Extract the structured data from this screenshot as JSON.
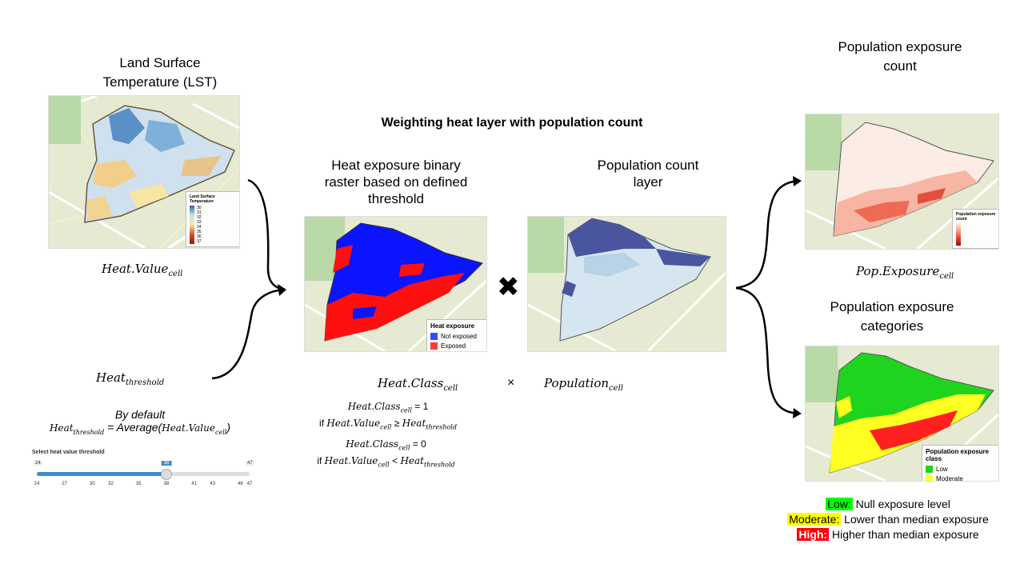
{
  "lst": {
    "title_line1": "Land Surface",
    "title_line2": "Temperature (LST)",
    "legend_title": "Land Surface Temperature",
    "legend_ticks": [
      "30",
      "31",
      "32",
      "33",
      "34",
      "35",
      "36",
      "37"
    ],
    "formula_base": "Heat.Value",
    "formula_sub": "cell"
  },
  "threshold": {
    "formula_base": "Heat",
    "formula_sub": "threshold",
    "default_line": "By default",
    "avg_prefix_base": "Heat",
    "avg_prefix_sub": "threshold",
    "avg_text": " = Average(",
    "avg_arg_base": "Heat.Value",
    "avg_arg_sub": "cell",
    "avg_close": ")"
  },
  "slider": {
    "label": "Select heat value threshold",
    "min": "24",
    "max": "47",
    "value": "38",
    "value_num": 38,
    "min_num": 24,
    "max_num": 47,
    "ticks": [
      "24",
      "27",
      "30",
      "32",
      "35",
      "38",
      "41",
      "43",
      "46",
      "47"
    ]
  },
  "center": {
    "heading": "Weighting heat layer with population count",
    "binary_title_line1": "Heat exposure binary",
    "binary_title_line2": "raster based on defined",
    "binary_title_line3": "threshold",
    "pop_title_line1": "Population count",
    "pop_title_line2": "layer",
    "multiply_symbol": "✖",
    "times_symbol": "×",
    "heat_class_base": "Heat.Class",
    "heat_class_sub": "cell",
    "population_base": "Population",
    "population_sub": "cell",
    "rule1_lhs_base": "Heat.Class",
    "rule1_lhs_sub": "cell",
    "rule1_eq": " = 1",
    "rule1_if": "if ",
    "rule1_val_base": "Heat.Value",
    "rule1_val_sub": "cell",
    "rule1_op": " ≥ ",
    "rule1_thr_base": "Heat",
    "rule1_thr_sub": "threshold",
    "rule2_lhs_base": "Heat.Class",
    "rule2_lhs_sub": "cell",
    "rule2_eq": " = 0",
    "rule2_if": "if ",
    "rule2_val_base": "Heat.Value",
    "rule2_val_sub": "cell",
    "rule2_op": " < ",
    "rule2_thr_base": "Heat",
    "rule2_thr_sub": "threshold"
  },
  "binary_legend": {
    "title": "Heat exposure",
    "items": [
      {
        "label": "Not exposed",
        "color": "#3a4bff"
      },
      {
        "label": "Exposed",
        "color": "#ff3a3a"
      }
    ]
  },
  "right": {
    "count_title_line1": "Population exposure",
    "count_title_line2": "count",
    "count_legend_title": "Population exposure count",
    "count_formula_base": "Pop.Exposure",
    "count_formula_sub": "cell",
    "cat_title_line1": "Population exposure",
    "cat_title_line2": "categories",
    "cat_legend_title": "Population exposure class",
    "cat_items": [
      {
        "label": "Low",
        "color": "#1fd41f"
      },
      {
        "label": "Moderate",
        "color": "#ffff22"
      },
      {
        "label": "High",
        "color": "#ff2020"
      }
    ]
  },
  "key": [
    {
      "tag": "Low:",
      "desc": " Null exposure level",
      "color": "#00ff00",
      "text_color": "#000000"
    },
    {
      "tag": "Moderate:",
      "desc": " Lower than median exposure",
      "color": "#ffff00",
      "text_color": "#000000"
    },
    {
      "tag": "High:",
      "desc": " Higher than median exposure",
      "color": "#ff0000",
      "text_color": "#ffffff"
    }
  ]
}
